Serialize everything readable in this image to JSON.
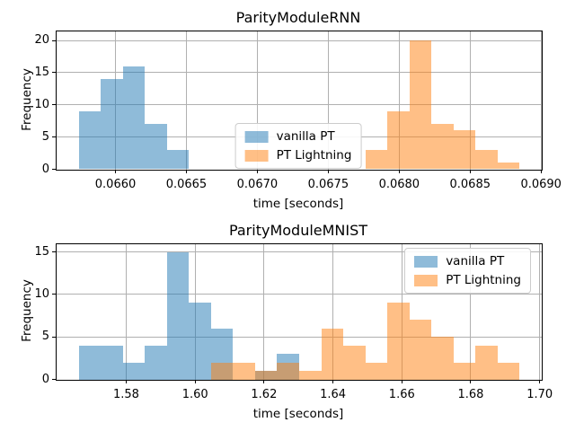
{
  "figure": {
    "background": "#ffffff",
    "grid_color": "#b0b0b0",
    "spine_color": "#000000",
    "bar_alpha": 0.5
  },
  "legend": {
    "entries": [
      "vanilla PT",
      "PT Lightning"
    ]
  },
  "chart_data": [
    {
      "type": "bar",
      "subtype": "histogram",
      "title": "ParityModuleRNN",
      "xlabel": "time [seconds]",
      "ylabel": "Frequency",
      "grid": true,
      "legend_loc": "center",
      "xlim": [
        0.065585,
        0.069005
      ],
      "ylim": [
        0,
        21.4
      ],
      "xticks": [
        0.066,
        0.0665,
        0.067,
        0.0675,
        0.068,
        0.0685,
        0.069
      ],
      "xtick_labels": [
        "0.0660",
        "0.0665",
        "0.0670",
        "0.0675",
        "0.0680",
        "0.0685",
        "0.0690"
      ],
      "yticks": [
        0,
        5,
        10,
        15,
        20
      ],
      "ytick_labels": [
        "0",
        "5",
        "10",
        "15",
        "20"
      ],
      "series": [
        {
          "name": "vanilla PT",
          "color": "#1f77b4",
          "bin_start": 0.065741,
          "bin_width": 0.0001554,
          "counts": [
            9,
            14,
            16,
            7,
            3
          ]
        },
        {
          "name": "PT Lightning",
          "color": "#ff7f0e",
          "bin_start": 0.067761,
          "bin_width": 0.0001554,
          "counts": [
            3,
            9,
            20,
            7,
            6,
            3,
            1
          ]
        }
      ]
    },
    {
      "type": "bar",
      "subtype": "histogram",
      "title": "ParityModuleMNIST",
      "xlabel": "time [seconds]",
      "ylabel": "Frequency",
      "grid": true,
      "legend_loc": "upper right",
      "xlim": [
        1.5598,
        1.7006
      ],
      "ylim": [
        0,
        15.9
      ],
      "xticks": [
        1.58,
        1.6,
        1.62,
        1.64,
        1.66,
        1.68,
        1.7
      ],
      "xtick_labels": [
        "1.58",
        "1.60",
        "1.62",
        "1.64",
        "1.66",
        "1.68",
        "1.70"
      ],
      "yticks": [
        0,
        5,
        10,
        15
      ],
      "ytick_labels": [
        "0",
        "5",
        "10",
        "15"
      ],
      "series": [
        {
          "name": "vanilla PT",
          "color": "#1f77b4",
          "bin_start": 1.5662,
          "bin_width": 0.0064,
          "counts": [
            4,
            4,
            2,
            4,
            15,
            9,
            6,
            0,
            1,
            3
          ]
        },
        {
          "name": "PT Lightning",
          "color": "#ff7f0e",
          "bin_start": 1.6046,
          "bin_width": 0.0064,
          "counts": [
            2,
            2,
            1,
            2,
            1,
            6,
            4,
            2,
            9,
            7,
            5,
            2,
            4,
            2
          ]
        }
      ]
    }
  ]
}
